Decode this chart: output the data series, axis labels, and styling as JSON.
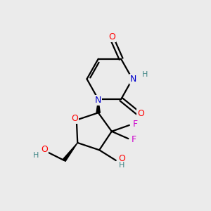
{
  "background_color": "#ebebeb",
  "atom_colors": {
    "O": "#ff0000",
    "N": "#0000cc",
    "F": "#cc00cc",
    "C": "#000000",
    "H": "#448888"
  },
  "bond_color": "#000000",
  "bond_width": 1.6
}
